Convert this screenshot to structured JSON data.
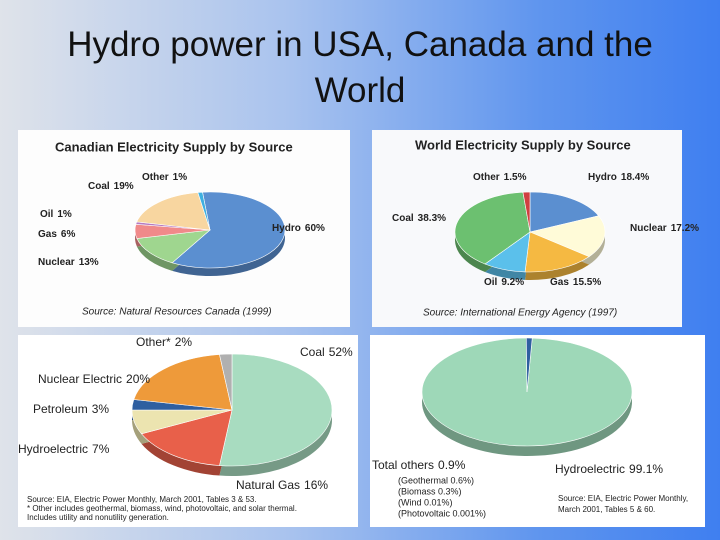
{
  "title": "Hydro power in USA, Canada and the World",
  "chart_data": [
    {
      "type": "pie",
      "title": "Canadian Electricity Supply by Source",
      "categories": [
        "Hydro",
        "Nuclear",
        "Gas",
        "Oil",
        "Coal",
        "Other"
      ],
      "values": [
        60,
        13,
        6,
        1,
        19,
        1
      ],
      "value_labels": [
        "60%",
        "13%",
        "6%",
        "1%",
        "19%",
        "1%"
      ],
      "colors": [
        "#5b8fd0",
        "#9fd68f",
        "#f08a8a",
        "#b57ac0",
        "#f8d6a0",
        "#3fb0e0"
      ],
      "source": "Source: Natural Resources Canada (1999)"
    },
    {
      "type": "pie",
      "title": "World Electricity Supply by Source",
      "categories": [
        "Hydro",
        "Nuclear",
        "Gas",
        "Oil",
        "Coal",
        "Other"
      ],
      "values": [
        18.4,
        17.2,
        15.5,
        9.2,
        38.3,
        1.5
      ],
      "value_labels": [
        "18.4%",
        "17.2%",
        "15.5%",
        "9.2%",
        "38.3%",
        "1.5%"
      ],
      "colors": [
        "#5b8fd0",
        "#fffbd8",
        "#f5b942",
        "#5bc0eb",
        "#6cc070",
        "#d04040"
      ],
      "source": "Source: International Energy Agency (1997)"
    },
    {
      "type": "pie",
      "categories": [
        "Coal",
        "Natural Gas",
        "Hydroelectric",
        "Petroleum",
        "Nuclear Electric",
        "Other*"
      ],
      "values": [
        52,
        16,
        7,
        3,
        20,
        2
      ],
      "value_labels": [
        "52%",
        "16%",
        "7%",
        "3%",
        "20%",
        "2%"
      ],
      "colors": [
        "#a8dcc0",
        "#e8604a",
        "#ece4b0",
        "#2f5fa0",
        "#ee9a3a",
        "#b0b0b0"
      ],
      "notes": [
        "Source: EIA, Electric Power Monthly, March 2001, Tables 3 & 53.",
        "* Other includes geothermal, biomass, wind, photovoltaic, and solar thermal.",
        "Includes utility and nonutility generation."
      ]
    },
    {
      "type": "pie",
      "categories": [
        "Hydroelectric",
        "Total others"
      ],
      "values": [
        99.1,
        0.9
      ],
      "value_labels": [
        "99.1%",
        "0.9%"
      ],
      "colors": [
        "#9ed8b8",
        "#2f5fa0"
      ],
      "annotations": [
        "(Geothermal 0.6%)",
        "(Biomass 0.3%)",
        "(Wind 0.01%)",
        "(Photovoltaic 0.001%)"
      ],
      "notes": [
        "Source: EIA, Electric Power Monthly,",
        "March 2001, Tables 5 & 60."
      ]
    }
  ]
}
